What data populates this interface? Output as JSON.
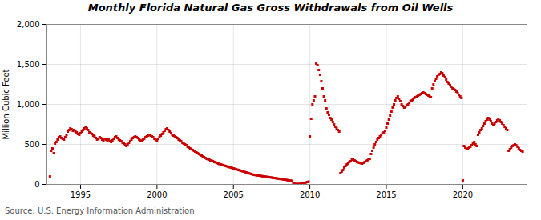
{
  "chart_data": {
    "type": "scatter",
    "title": "Monthly Florida Natural Gas Gross Withdrawals from Oil Wells",
    "ylabel": "Million Cubic Feet",
    "source": "Source: U.S. Energy Information Administration",
    "color": "#CC0000",
    "marker": "square",
    "grid": true,
    "xlim": [
      1992.8,
      2024.2
    ],
    "xticks": [
      1995,
      2000,
      2005,
      2010,
      2015,
      2020
    ],
    "ylim": [
      0,
      2000
    ],
    "yticks": [
      0,
      500,
      {
        "value": 1000,
        "label": "1,000"
      },
      {
        "value": 1500,
        "label": "1,500"
      },
      {
        "value": 2000,
        "label": "2,000"
      }
    ],
    "x": [
      1993.0,
      1993.083,
      1993.167,
      1993.25,
      1993.333,
      1993.417,
      1993.5,
      1993.583,
      1993.667,
      1993.75,
      1993.833,
      1993.917,
      1994.0,
      1994.083,
      1994.167,
      1994.25,
      1994.333,
      1994.417,
      1994.5,
      1994.583,
      1994.667,
      1994.75,
      1994.833,
      1994.917,
      1995.0,
      1995.083,
      1995.167,
      1995.25,
      1995.333,
      1995.417,
      1995.5,
      1995.583,
      1995.667,
      1995.75,
      1995.833,
      1995.917,
      1996.0,
      1996.083,
      1996.167,
      1996.25,
      1996.333,
      1996.417,
      1996.5,
      1996.583,
      1996.667,
      1996.75,
      1996.833,
      1996.917,
      1997.0,
      1997.083,
      1997.167,
      1997.25,
      1997.333,
      1997.417,
      1997.5,
      1997.583,
      1997.667,
      1997.75,
      1997.833,
      1997.917,
      1998.0,
      1998.083,
      1998.167,
      1998.25,
      1998.333,
      1998.417,
      1998.5,
      1998.583,
      1998.667,
      1998.75,
      1998.833,
      1998.917,
      1999.0,
      1999.083,
      1999.167,
      1999.25,
      1999.333,
      1999.417,
      1999.5,
      1999.583,
      1999.667,
      1999.75,
      1999.833,
      1999.917,
      2000.0,
      2000.083,
      2000.167,
      2000.25,
      2000.333,
      2000.417,
      2000.5,
      2000.583,
      2000.667,
      2000.75,
      2000.833,
      2000.917,
      2001.0,
      2001.083,
      2001.167,
      2001.25,
      2001.333,
      2001.417,
      2001.5,
      2001.583,
      2001.667,
      2001.75,
      2001.833,
      2001.917,
      2002.0,
      2002.083,
      2002.167,
      2002.25,
      2002.333,
      2002.417,
      2002.5,
      2002.583,
      2002.667,
      2002.75,
      2002.833,
      2002.917,
      2003.0,
      2003.083,
      2003.167,
      2003.25,
      2003.333,
      2003.417,
      2003.5,
      2003.583,
      2003.667,
      2003.75,
      2003.833,
      2003.917,
      2004.0,
      2004.083,
      2004.167,
      2004.25,
      2004.333,
      2004.417,
      2004.5,
      2004.583,
      2004.667,
      2004.75,
      2004.833,
      2004.917,
      2005.0,
      2005.083,
      2005.167,
      2005.25,
      2005.333,
      2005.417,
      2005.5,
      2005.583,
      2005.667,
      2005.75,
      2005.833,
      2005.917,
      2006.0,
      2006.083,
      2006.167,
      2006.25,
      2006.333,
      2006.417,
      2006.5,
      2006.583,
      2006.667,
      2006.75,
      2006.833,
      2006.917,
      2007.0,
      2007.083,
      2007.167,
      2007.25,
      2007.333,
      2007.417,
      2007.5,
      2007.583,
      2007.667,
      2007.75,
      2007.833,
      2007.917,
      2008.0,
      2008.083,
      2008.167,
      2008.25,
      2008.333,
      2008.417,
      2008.5,
      2008.583,
      2008.667,
      2008.75,
      2008.833,
      2008.917,
      2009.0,
      2009.083,
      2009.167,
      2009.25,
      2009.333,
      2009.417,
      2009.5,
      2009.583,
      2009.667,
      2009.75,
      2009.833,
      2009.917,
      2010.0,
      2010.083,
      2010.167,
      2010.25,
      2010.333,
      2010.417,
      2010.5,
      2010.583,
      2010.667,
      2010.75,
      2010.833,
      2010.917,
      2011.0,
      2011.083,
      2011.167,
      2011.25,
      2011.333,
      2011.417,
      2011.5,
      2011.583,
      2011.667,
      2011.75,
      2011.833,
      2011.917,
      2012.0,
      2012.083,
      2012.167,
      2012.25,
      2012.333,
      2012.417,
      2012.5,
      2012.583,
      2012.667,
      2012.75,
      2012.833,
      2012.917,
      2013.0,
      2013.083,
      2013.167,
      2013.25,
      2013.333,
      2013.417,
      2013.5,
      2013.583,
      2013.667,
      2013.75,
      2013.833,
      2013.917,
      2014.0,
      2014.083,
      2014.167,
      2014.25,
      2014.333,
      2014.417,
      2014.5,
      2014.583,
      2014.667,
      2014.75,
      2014.833,
      2014.917,
      2015.0,
      2015.083,
      2015.167,
      2015.25,
      2015.333,
      2015.417,
      2015.5,
      2015.583,
      2015.667,
      2015.75,
      2015.833,
      2015.917,
      2016.0,
      2016.083,
      2016.167,
      2016.25,
      2016.333,
      2016.417,
      2016.5,
      2016.583,
      2016.667,
      2016.75,
      2016.833,
      2016.917,
      2017.0,
      2017.083,
      2017.167,
      2017.25,
      2017.333,
      2017.417,
      2017.5,
      2017.583,
      2017.667,
      2017.75,
      2017.833,
      2017.917,
      2018.0,
      2018.083,
      2018.167,
      2018.25,
      2018.333,
      2018.417,
      2018.5,
      2018.583,
      2018.667,
      2018.75,
      2018.833,
      2018.917,
      2019.0,
      2019.083,
      2019.167,
      2019.25,
      2019.333,
      2019.417,
      2019.5,
      2019.583,
      2019.667,
      2019.75,
      2019.833,
      2019.917,
      2020.0,
      2020.083,
      2020.167,
      2020.25,
      2020.333,
      2020.417,
      2020.5,
      2020.583,
      2020.667,
      2020.75,
      2020.833,
      2020.917,
      2021.0,
      2021.083,
      2021.167,
      2021.25,
      2021.333,
      2021.417,
      2021.5,
      2021.583,
      2021.667,
      2021.75,
      2021.833,
      2021.917,
      2022.0,
      2022.083,
      2022.167,
      2022.25,
      2022.333,
      2022.417,
      2022.5,
      2022.583,
      2022.667,
      2022.75,
      2022.833,
      2022.917,
      2023.0,
      2023.083,
      2023.167,
      2023.25,
      2023.333,
      2023.417,
      2023.5,
      2023.583,
      2023.667,
      2023.75,
      2023.833,
      2023.917
    ],
    "values": [
      100,
      420,
      450,
      390,
      510,
      530,
      560,
      590,
      600,
      580,
      570,
      560,
      590,
      620,
      660,
      680,
      700,
      690,
      670,
      680,
      660,
      650,
      630,
      620,
      640,
      660,
      680,
      700,
      720,
      700,
      680,
      650,
      640,
      630,
      610,
      600,
      580,
      560,
      570,
      590,
      580,
      560,
      550,
      570,
      560,
      550,
      560,
      540,
      530,
      550,
      570,
      590,
      600,
      580,
      560,
      550,
      540,
      520,
      510,
      500,
      480,
      500,
      520,
      540,
      560,
      580,
      590,
      600,
      590,
      580,
      560,
      550,
      540,
      560,
      570,
      590,
      600,
      610,
      620,
      610,
      600,
      590,
      570,
      560,
      550,
      570,
      590,
      610,
      630,
      650,
      670,
      690,
      700,
      680,
      660,
      640,
      620,
      610,
      600,
      590,
      580,
      560,
      550,
      540,
      520,
      510,
      500,
      490,
      470,
      460,
      450,
      440,
      430,
      420,
      410,
      400,
      390,
      380,
      370,
      360,
      350,
      340,
      330,
      320,
      315,
      310,
      300,
      295,
      290,
      280,
      275,
      270,
      260,
      255,
      250,
      245,
      240,
      235,
      230,
      225,
      220,
      215,
      210,
      205,
      200,
      195,
      190,
      185,
      180,
      175,
      170,
      165,
      160,
      155,
      150,
      145,
      140,
      135,
      130,
      125,
      120,
      118,
      115,
      112,
      110,
      108,
      105,
      102,
      100,
      98,
      95,
      93,
      90,
      88,
      85,
      83,
      80,
      78,
      75,
      73,
      70,
      68,
      65,
      63,
      60,
      58,
      55,
      52,
      50,
      48,
      45,
      10,
      8,
      6,
      5,
      5,
      6,
      8,
      10,
      15,
      20,
      25,
      30,
      35,
      600,
      820,
      1000,
      1050,
      1100,
      1510,
      1490,
      1430,
      1370,
      1290,
      1200,
      1100,
      1050,
      950,
      900,
      870,
      830,
      810,
      780,
      750,
      720,
      700,
      680,
      660,
      140,
      160,
      180,
      210,
      230,
      250,
      260,
      280,
      290,
      310,
      320,
      300,
      290,
      280,
      275,
      270,
      265,
      260,
      270,
      280,
      290,
      300,
      310,
      320,
      380,
      420,
      460,
      500,
      530,
      560,
      580,
      600,
      620,
      640,
      650,
      670,
      710,
      760,
      810,
      860,
      910,
      960,
      1000,
      1050,
      1080,
      1100,
      1070,
      1040,
      1000,
      980,
      960,
      970,
      990,
      1000,
      1020,
      1040,
      1050,
      1060,
      1080,
      1090,
      1100,
      1110,
      1120,
      1130,
      1140,
      1150,
      1140,
      1130,
      1120,
      1110,
      1100,
      1090,
      1200,
      1250,
      1290,
      1320,
      1350,
      1370,
      1380,
      1400,
      1390,
      1360,
      1340,
      1310,
      1280,
      1260,
      1240,
      1220,
      1200,
      1190,
      1180,
      1160,
      1140,
      1120,
      1100,
      1080,
      50,
      480,
      460,
      440,
      450,
      460,
      470,
      490,
      510,
      530,
      500,
      480,
      620,
      650,
      680,
      700,
      730,
      760,
      790,
      810,
      830,
      810,
      790,
      760,
      740,
      760,
      780,
      800,
      820,
      800,
      780,
      760,
      740,
      720,
      700,
      680,
      420,
      440,
      460,
      480,
      490,
      500,
      490,
      470,
      450,
      430,
      420,
      410
    ]
  }
}
